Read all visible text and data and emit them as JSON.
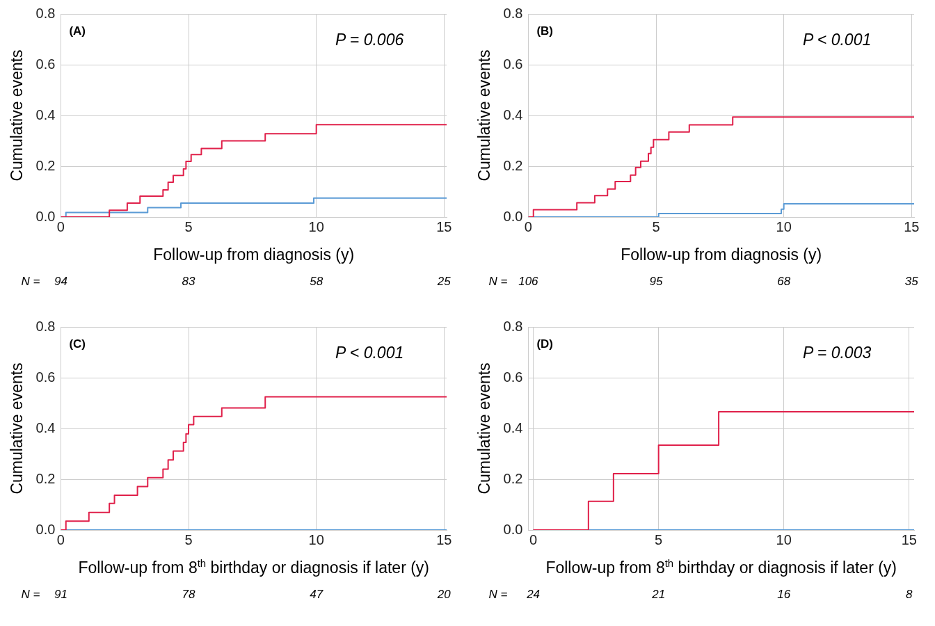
{
  "chart_data": [
    {
      "type": "step",
      "title": "(A)",
      "xlabel": "Follow-up from diagnosis (y)",
      "ylabel": "Cumulative events",
      "series": [
        {
          "color": "#e0204a",
          "x": [
            0,
            1.9,
            2.6,
            3.1,
            4.0,
            4.2,
            4.4,
            4.8,
            4.9,
            5.1,
            5.5,
            6.3,
            8.0,
            10.0,
            15.1
          ],
          "values": [
            0,
            0.027,
            0.055,
            0.082,
            0.107,
            0.137,
            0.164,
            0.19,
            0.219,
            0.246,
            0.27,
            0.3,
            0.328,
            0.364,
            0.364
          ]
        },
        {
          "color": "#5b9bd5",
          "x": [
            0,
            0.2,
            3.4,
            4.7,
            9.9,
            15.1
          ],
          "values": [
            0,
            0.018,
            0.037,
            0.055,
            0.075,
            0.075
          ]
        }
      ],
      "xlim": [
        0,
        15.1
      ],
      "xticks": [
        0,
        5,
        10,
        15
      ],
      "ylim": [
        0,
        0.8
      ],
      "yticks": [
        {
          "value": 0,
          "label": "0.0"
        },
        {
          "value": 0.2,
          "label": "0.2"
        },
        {
          "value": 0.4,
          "label": "0.4"
        },
        {
          "value": 0.6,
          "label": "0.6"
        },
        {
          "value": 0.8,
          "label": "0.8"
        }
      ],
      "grid": true,
      "annotations": [
        "P = 0.006",
        "N =",
        "94",
        "83",
        "58",
        "25"
      ]
    },
    {
      "type": "step",
      "title": "(B)",
      "xlabel": "Follow-up from diagnosis (y)",
      "ylabel": "Cumulative events",
      "series": [
        {
          "color": "#e0204a",
          "x": [
            0,
            0.2,
            1.9,
            2.6,
            3.1,
            3.4,
            4.0,
            4.2,
            4.4,
            4.7,
            4.8,
            4.9,
            5.5,
            6.3,
            8.0,
            15.1
          ],
          "values": [
            0,
            0.029,
            0.056,
            0.084,
            0.11,
            0.14,
            0.165,
            0.195,
            0.22,
            0.25,
            0.275,
            0.305,
            0.335,
            0.363,
            0.394,
            0.394
          ]
        },
        {
          "color": "#5b9bd5",
          "x": [
            0,
            5.1,
            9.9,
            10.0,
            15.1
          ],
          "values": [
            0,
            0.014,
            0.031,
            0.052,
            0.052
          ]
        }
      ],
      "xlim": [
        0,
        15.1
      ],
      "xticks": [
        0,
        5,
        10,
        15
      ],
      "ylim": [
        0,
        0.8
      ],
      "yticks": [
        {
          "value": 0,
          "label": "0.0"
        },
        {
          "value": 0.2,
          "label": "0.2"
        },
        {
          "value": 0.4,
          "label": "0.4"
        },
        {
          "value": 0.6,
          "label": "0.6"
        },
        {
          "value": 0.8,
          "label": "0.8"
        }
      ],
      "grid": true,
      "annotations": [
        "P < 0.001",
        "N =",
        "106",
        "95",
        "68",
        "35"
      ]
    },
    {
      "type": "step",
      "title": "(C)",
      "xlabel": "Follow-up from 8$^{th}$ birthday or diagnosis if later (y)",
      "ylabel": "Cumulative events",
      "series": [
        {
          "color": "#e0204a",
          "x": [
            0,
            0.2,
            1.1,
            1.9,
            2.1,
            3.0,
            3.4,
            4.0,
            4.2,
            4.4,
            4.8,
            4.9,
            5.0,
            5.2,
            6.3,
            8.0,
            15.1
          ],
          "values": [
            0,
            0.035,
            0.069,
            0.105,
            0.137,
            0.171,
            0.206,
            0.24,
            0.276,
            0.311,
            0.345,
            0.379,
            0.415,
            0.447,
            0.481,
            0.525,
            0.525
          ]
        },
        {
          "color": "#5b9bd5",
          "x": [
            0,
            15.1
          ],
          "values": [
            0,
            0
          ]
        }
      ],
      "xlim": [
        0,
        15.1
      ],
      "xticks": [
        0,
        5,
        10,
        15
      ],
      "ylim": [
        0,
        0.8
      ],
      "yticks": [
        {
          "value": 0,
          "label": "0.0"
        },
        {
          "value": 0.2,
          "label": "0.2"
        },
        {
          "value": 0.4,
          "label": "0.4"
        },
        {
          "value": 0.6,
          "label": "0.6"
        },
        {
          "value": 0.8,
          "label": "0.8"
        }
      ],
      "grid": true,
      "annotations": [
        "P < 0.001",
        "N =",
        "91",
        "78",
        "47",
        "20"
      ]
    },
    {
      "type": "step",
      "title": "(D)",
      "xlabel": "Follow-up from 8$^{th}$ birthday or diagnosis if later (y)",
      "ylabel": "Cumulative events",
      "series": [
        {
          "color": "#e0204a",
          "x": [
            0,
            2.2,
            3.2,
            5.0,
            7.4,
            15.2
          ],
          "values": [
            0,
            0.113,
            0.222,
            0.334,
            0.466,
            0.466
          ]
        },
        {
          "color": "#5b9bd5",
          "x": [
            0,
            15.2
          ],
          "values": [
            0,
            0
          ]
        }
      ],
      "xlim": [
        -0.2,
        15.2
      ],
      "xticks": [
        0,
        5,
        10,
        15
      ],
      "ylim": [
        0,
        0.8
      ],
      "yticks": [
        {
          "value": 0,
          "label": "0.0"
        },
        {
          "value": 0.2,
          "label": "0.2"
        },
        {
          "value": 0.4,
          "label": "0.4"
        },
        {
          "value": 0.6,
          "label": "0.6"
        },
        {
          "value": 0.8,
          "label": "0.8"
        }
      ],
      "grid": true,
      "annotations": [
        "P = 0.003",
        "N =",
        "24",
        "21",
        "16",
        "8"
      ]
    }
  ]
}
